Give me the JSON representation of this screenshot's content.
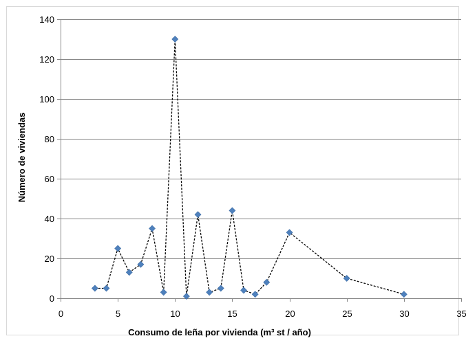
{
  "chart_data": {
    "type": "scatter",
    "line_style": "dashed",
    "title": "",
    "xlabel": "Consumo de leña por vivienda  (m³ st / año)",
    "ylabel": "Número de viviendas",
    "xlim": [
      0,
      35
    ],
    "ylim": [
      0,
      140
    ],
    "x_ticks": [
      0,
      5,
      10,
      15,
      20,
      25,
      30,
      35
    ],
    "y_ticks": [
      0,
      20,
      40,
      60,
      80,
      100,
      120,
      140
    ],
    "grid": "horizontal",
    "legend": "none",
    "series": [
      {
        "color": "#4f81bd",
        "marker": "diamond",
        "line_color": "#000000",
        "points": [
          {
            "x": 3,
            "y": 5
          },
          {
            "x": 4,
            "y": 5
          },
          {
            "x": 5,
            "y": 25
          },
          {
            "x": 6,
            "y": 13
          },
          {
            "x": 7,
            "y": 17
          },
          {
            "x": 8,
            "y": 35
          },
          {
            "x": 9,
            "y": 3
          },
          {
            "x": 10,
            "y": 130
          },
          {
            "x": 11,
            "y": 1
          },
          {
            "x": 12,
            "y": 42
          },
          {
            "x": 13,
            "y": 3
          },
          {
            "x": 14,
            "y": 5
          },
          {
            "x": 15,
            "y": 44
          },
          {
            "x": 16,
            "y": 4
          },
          {
            "x": 17,
            "y": 2
          },
          {
            "x": 18,
            "y": 8
          },
          {
            "x": 20,
            "y": 33
          },
          {
            "x": 25,
            "y": 10
          },
          {
            "x": 30,
            "y": 2
          }
        ]
      }
    ]
  }
}
